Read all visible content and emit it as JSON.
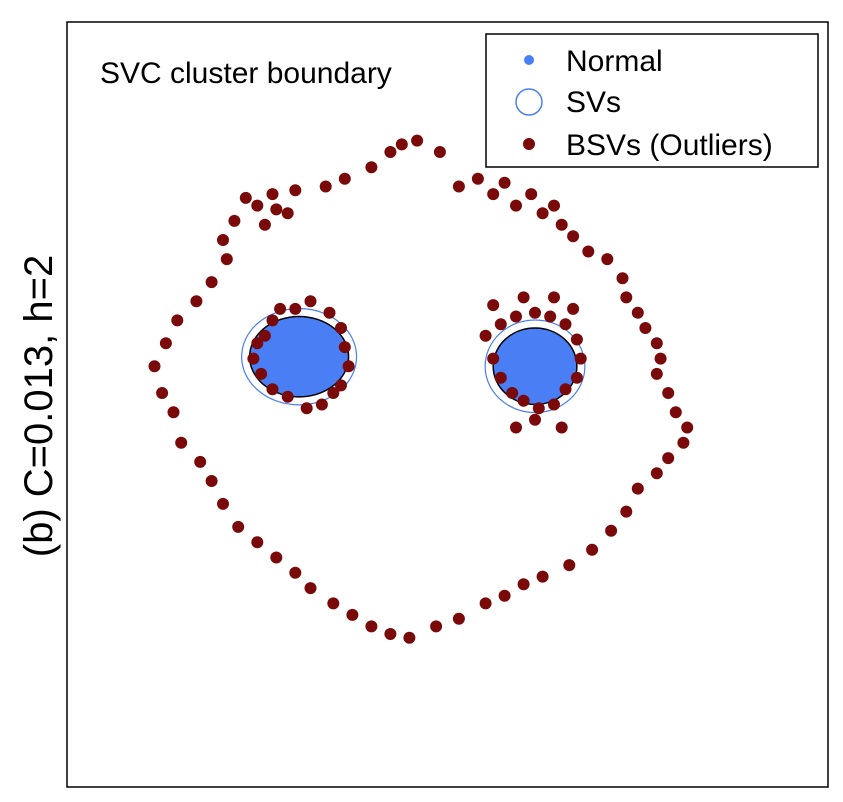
{
  "chart_data": {
    "type": "scatter",
    "title": "SVC cluster boundary",
    "ylabel": "(b) C=0.013, h=2",
    "xlabel": "",
    "grid": false,
    "axes_ticks": false,
    "legend_position": "top-right",
    "legend": [
      {
        "label": "Normal",
        "marker": "filled-dot",
        "color": "#4a7ef5"
      },
      {
        "label": "SVs",
        "marker": "open-circle",
        "color": "#4a7ef5"
      },
      {
        "label": "BSVs (Outliers)",
        "marker": "filled-dot",
        "color": "#7a0a0a"
      }
    ],
    "xlim": [
      -1,
      1
    ],
    "ylim": [
      -1,
      1
    ],
    "clusters": [
      {
        "name": "left",
        "center": [
          -0.39,
          0.125
        ],
        "radius_x": 0.13,
        "radius_y": 0.105
      },
      {
        "name": "right",
        "center": [
          0.23,
          0.1
        ],
        "radius_x": 0.11,
        "radius_y": 0.1
      }
    ],
    "series": [
      {
        "name": "BSVs (Outliers)",
        "color": "#7a0a0a",
        "points": [
          [
            -0.53,
            0.54
          ],
          [
            -0.5,
            0.52
          ],
          [
            -0.46,
            0.55
          ],
          [
            -0.45,
            0.51
          ],
          [
            -0.42,
            0.5
          ],
          [
            -0.48,
            0.47
          ],
          [
            -0.4,
            0.56
          ],
          [
            -0.32,
            0.57
          ],
          [
            -0.27,
            0.59
          ],
          [
            -0.2,
            0.62
          ],
          [
            -0.15,
            0.66
          ],
          [
            -0.12,
            0.68
          ],
          [
            -0.08,
            0.69
          ],
          [
            -0.02,
            0.66
          ],
          [
            0.03,
            0.57
          ],
          [
            0.08,
            0.59
          ],
          [
            0.12,
            0.55
          ],
          [
            0.15,
            0.58
          ],
          [
            0.18,
            0.52
          ],
          [
            0.22,
            0.55
          ],
          [
            0.25,
            0.5
          ],
          [
            0.28,
            0.52
          ],
          [
            0.3,
            0.47
          ],
          [
            0.33,
            0.44
          ],
          [
            0.37,
            0.4
          ],
          [
            0.42,
            0.38
          ],
          [
            0.46,
            0.33
          ],
          [
            0.47,
            0.28
          ],
          [
            0.5,
            0.24
          ],
          [
            0.52,
            0.2
          ],
          [
            0.55,
            0.16
          ],
          [
            0.56,
            0.12
          ],
          [
            0.55,
            0.08
          ],
          [
            0.58,
            0.03
          ],
          [
            0.6,
            -0.02
          ],
          [
            0.63,
            -0.06
          ],
          [
            0.62,
            -0.1
          ],
          [
            0.58,
            -0.14
          ],
          [
            0.55,
            -0.18
          ],
          [
            0.5,
            -0.22
          ],
          [
            0.47,
            -0.28
          ],
          [
            0.43,
            -0.33
          ],
          [
            0.38,
            -0.38
          ],
          [
            0.32,
            -0.42
          ],
          [
            0.25,
            -0.45
          ],
          [
            0.2,
            -0.47
          ],
          [
            0.15,
            -0.5
          ],
          [
            0.1,
            -0.52
          ],
          [
            0.03,
            -0.56
          ],
          [
            -0.03,
            -0.58
          ],
          [
            -0.1,
            -0.61
          ],
          [
            -0.15,
            -0.6
          ],
          [
            -0.2,
            -0.58
          ],
          [
            -0.25,
            -0.55
          ],
          [
            -0.3,
            -0.52
          ],
          [
            -0.36,
            -0.48
          ],
          [
            -0.4,
            -0.44
          ],
          [
            -0.45,
            -0.4
          ],
          [
            -0.5,
            -0.36
          ],
          [
            -0.55,
            -0.32
          ],
          [
            -0.59,
            -0.26
          ],
          [
            -0.62,
            -0.2
          ],
          [
            -0.65,
            -0.15
          ],
          [
            -0.7,
            -0.1
          ],
          [
            -0.72,
            -0.02
          ],
          [
            -0.75,
            0.03
          ],
          [
            -0.77,
            0.1
          ],
          [
            -0.74,
            0.16
          ],
          [
            -0.71,
            0.22
          ],
          [
            -0.66,
            0.27
          ],
          [
            -0.62,
            0.32
          ],
          [
            -0.58,
            0.38
          ],
          [
            -0.59,
            0.43
          ],
          [
            -0.56,
            0.48
          ],
          [
            -0.48,
            0.18
          ],
          [
            -0.46,
            0.22
          ],
          [
            -0.44,
            0.25
          ],
          [
            -0.4,
            0.25
          ],
          [
            -0.36,
            0.27
          ],
          [
            -0.31,
            0.24
          ],
          [
            -0.28,
            0.2
          ],
          [
            -0.27,
            0.15
          ],
          [
            -0.26,
            0.1
          ],
          [
            -0.28,
            0.05
          ],
          [
            -0.3,
            0.03
          ],
          [
            -0.33,
            0.0
          ],
          [
            -0.37,
            -0.01
          ],
          [
            -0.42,
            0.02
          ],
          [
            -0.46,
            0.04
          ],
          [
            -0.49,
            0.08
          ],
          [
            -0.51,
            0.12
          ],
          [
            -0.5,
            0.16
          ],
          [
            0.1,
            0.18
          ],
          [
            0.12,
            0.12
          ],
          [
            0.14,
            0.07
          ],
          [
            0.17,
            0.03
          ],
          [
            0.2,
            0.01
          ],
          [
            0.24,
            -0.01
          ],
          [
            0.28,
            0.0
          ],
          [
            0.31,
            0.04
          ],
          [
            0.34,
            0.07
          ],
          [
            0.35,
            0.12
          ],
          [
            0.34,
            0.17
          ],
          [
            0.31,
            0.21
          ],
          [
            0.27,
            0.23
          ],
          [
            0.23,
            0.24
          ],
          [
            0.18,
            0.23
          ],
          [
            0.14,
            0.21
          ],
          [
            0.12,
            0.26
          ],
          [
            0.2,
            0.28
          ],
          [
            0.28,
            0.28
          ],
          [
            0.33,
            0.25
          ],
          [
            0.23,
            -0.04
          ],
          [
            0.18,
            -0.06
          ],
          [
            0.3,
            -0.06
          ]
        ]
      }
    ]
  }
}
